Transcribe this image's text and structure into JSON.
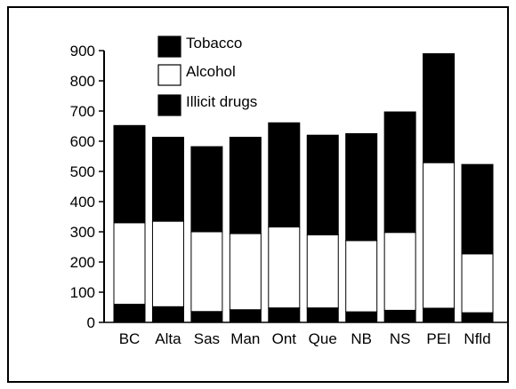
{
  "chart_data": {
    "type": "bar",
    "stacked": true,
    "title": "",
    "xlabel": "",
    "ylabel": "",
    "ylim": [
      0,
      900
    ],
    "yticks": [
      0,
      100,
      200,
      300,
      400,
      500,
      600,
      700,
      800,
      900
    ],
    "grid": false,
    "legend_position": "top-left",
    "categories": [
      "BC",
      "Alta",
      "Sas",
      "Man",
      "Ont",
      "Que",
      "NB",
      "NS",
      "PEI",
      "Nfld"
    ],
    "series": [
      {
        "name": "Illicit drugs",
        "color": "#000000",
        "values": [
          60,
          52,
          36,
          42,
          48,
          48,
          35,
          40,
          47,
          32
        ]
      },
      {
        "name": "Alcohol",
        "color": "#ffffff",
        "values": [
          270,
          283,
          264,
          252,
          268,
          242,
          236,
          258,
          482,
          195
        ]
      },
      {
        "name": "Tobacco",
        "color": "#000000",
        "values": [
          322,
          278,
          282,
          319,
          345,
          330,
          354,
          399,
          361,
          296
        ]
      }
    ],
    "legend": [
      "Tobacco",
      "Alcohol",
      "Illicit drugs"
    ]
  }
}
